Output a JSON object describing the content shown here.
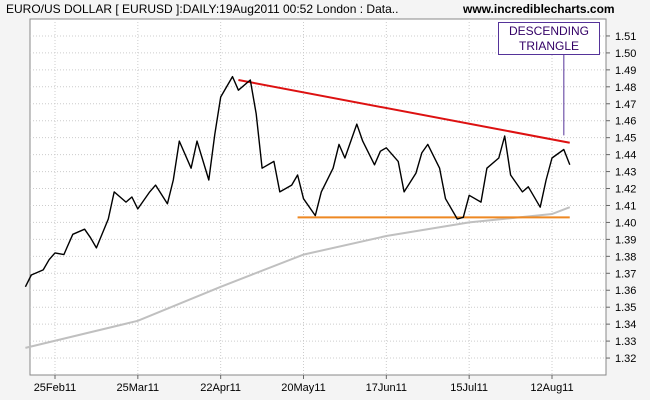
{
  "header": {
    "title": "EURO/US DOLLAR [ EURUSD ]:DAILY:19Aug2011 00:52 London : Data..",
    "site": "www.incrediblecharts.com"
  },
  "annotation": {
    "line1": "DESCENDING",
    "line2": "TRIANGLE",
    "color": "#553399"
  },
  "colors": {
    "price": "#000000",
    "trendline": "#dd1111",
    "support": "#ee8822",
    "moving_average": "#c0c0c0",
    "grid": "#cccccc",
    "background": "#f4f4f4",
    "plot_background": "#ffffff"
  },
  "chart_data": {
    "type": "line",
    "title": "EURO/US DOLLAR [ EURUSD ]:DAILY:19Aug2011 00:52 London : Data..",
    "ylim": [
      1.31,
      1.52
    ],
    "y_ticks": [
      "1.32",
      "1.33",
      "1.34",
      "1.35",
      "1.36",
      "1.37",
      "1.38",
      "1.39",
      "1.40",
      "1.41",
      "1.42",
      "1.43",
      "1.44",
      "1.45",
      "1.46",
      "1.47",
      "1.48",
      "1.49",
      "1.50",
      "1.51"
    ],
    "x_ticks": [
      "25Feb11",
      "25Mar11",
      "22Apr11",
      "20May11",
      "17Jun11",
      "15Jul11",
      "12Aug11"
    ],
    "grid": true,
    "series": [
      {
        "role": "price",
        "x": [
          "15Feb11",
          "17Feb11",
          "21Feb11",
          "23Feb11",
          "25Feb11",
          "28Feb11",
          "01Mar11",
          "03Mar11",
          "07Mar11",
          "09Mar11",
          "11Mar11",
          "15Mar11",
          "17Mar11",
          "21Mar11",
          "23Mar11",
          "25Mar11",
          "29Mar11",
          "31Mar11",
          "04Apr11",
          "06Apr11",
          "08Apr11",
          "12Apr11",
          "14Apr11",
          "18Apr11",
          "20Apr11",
          "22Apr11",
          "26Apr11",
          "28Apr11",
          "02May11",
          "04May11",
          "06May11",
          "10May11",
          "12May11",
          "16May11",
          "18May11",
          "20May11",
          "24May11",
          "26May11",
          "30May11",
          "01Jun11",
          "03Jun11",
          "07Jun11",
          "09Jun11",
          "13Jun11",
          "15Jun11",
          "17Jun11",
          "21Jun11",
          "23Jun11",
          "27Jun11",
          "29Jun11",
          "01Jul11",
          "05Jul11",
          "07Jul11",
          "11Jul11",
          "13Jul11",
          "15Jul11",
          "19Jul11",
          "21Jul11",
          "25Jul11",
          "27Jul11",
          "29Jul11",
          "02Aug11",
          "04Aug11",
          "08Aug11",
          "10Aug11",
          "12Aug11",
          "16Aug11",
          "18Aug11"
        ],
        "values": [
          1.362,
          1.369,
          1.372,
          1.378,
          1.382,
          1.381,
          1.385,
          1.393,
          1.396,
          1.391,
          1.385,
          1.402,
          1.418,
          1.412,
          1.415,
          1.408,
          1.418,
          1.422,
          1.411,
          1.425,
          1.448,
          1.432,
          1.448,
          1.425,
          1.452,
          1.474,
          1.486,
          1.478,
          1.484,
          1.464,
          1.432,
          1.436,
          1.418,
          1.422,
          1.428,
          1.414,
          1.404,
          1.418,
          1.432,
          1.446,
          1.438,
          1.458,
          1.448,
          1.434,
          1.442,
          1.444,
          1.436,
          1.418,
          1.429,
          1.441,
          1.446,
          1.432,
          1.414,
          1.402,
          1.403,
          1.416,
          1.412,
          1.432,
          1.438,
          1.451,
          1.428,
          1.418,
          1.421,
          1.409,
          1.425,
          1.438,
          1.443,
          1.434
        ]
      },
      {
        "role": "moving_average",
        "x": [
          "15Feb11",
          "25Mar11",
          "22Apr11",
          "20May11",
          "17Jun11",
          "15Jul11",
          "12Aug11",
          "18Aug11"
        ],
        "values": [
          1.326,
          1.342,
          1.362,
          1.381,
          1.392,
          1.4,
          1.405,
          1.409
        ]
      }
    ],
    "annotations": [
      {
        "kind": "trendline",
        "from": {
          "x": "28Apr11",
          "y": 1.484
        },
        "to": {
          "x": "18Aug11",
          "y": 1.447
        }
      },
      {
        "kind": "support",
        "from": {
          "x": "18May11",
          "y": 1.403
        },
        "to": {
          "x": "18Aug11",
          "y": 1.403
        }
      },
      {
        "kind": "label_pointer",
        "label": "DESCENDING TRIANGLE",
        "to": {
          "x": "16Aug11",
          "y": 1.449
        }
      }
    ]
  }
}
